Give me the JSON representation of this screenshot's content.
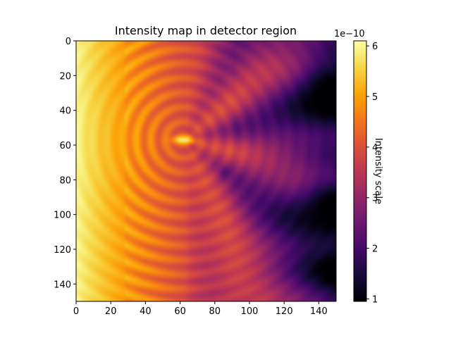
{
  "chart_data": {
    "type": "heatmap",
    "title": "Intensity map in detector region",
    "xlabel": "",
    "ylabel": "",
    "colormap": "inferno",
    "xlim": [
      0,
      150
    ],
    "ylim": [
      150,
      0
    ],
    "x_ticks": [
      0,
      20,
      40,
      60,
      80,
      100,
      120,
      140
    ],
    "y_ticks": [
      0,
      20,
      40,
      60,
      80,
      100,
      120,
      140
    ],
    "colorbar": {
      "label": "Intensity scale",
      "offset_text": "1e−10",
      "range": [
        0.95,
        6.1
      ],
      "ticks": [
        1,
        2,
        3,
        4,
        5,
        6
      ]
    },
    "features": {
      "background_start": 6.0,
      "background_end": 1.8,
      "hotspot_x": 62,
      "hotspot_y": 57,
      "hotspot_value": 5.9,
      "dark_spots": [
        {
          "x": 148,
          "y": 28,
          "value": 0.95
        },
        {
          "x": 148,
          "y": 95,
          "value": 0.95
        },
        {
          "x": 86,
          "y": 76,
          "value": 2.3
        }
      ],
      "vertical_seams": [
        65,
        90
      ]
    }
  }
}
